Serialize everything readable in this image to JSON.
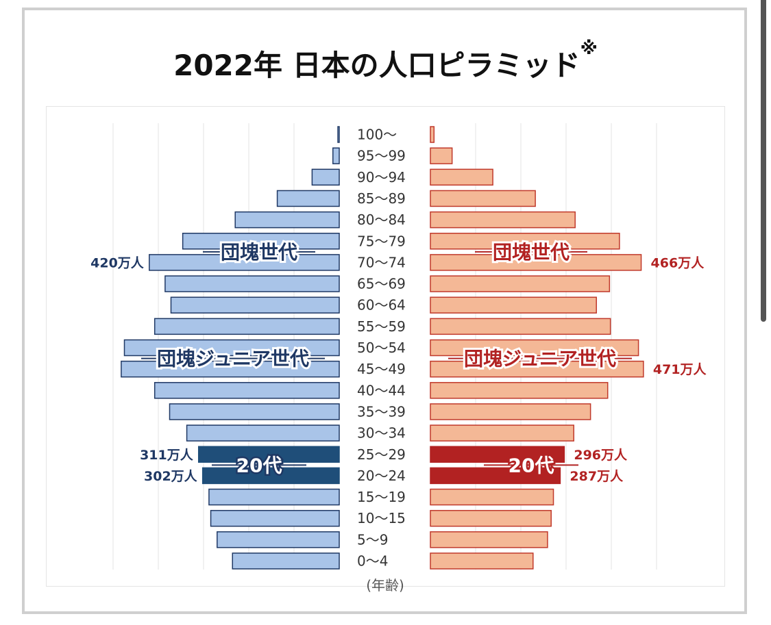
{
  "page": {
    "title": "2022年 日本の人口ピラミッド",
    "title_note_mark": "※"
  },
  "chart_data": {
    "type": "bar",
    "orientation": "horizontal-pyramid",
    "title": "2022年 日本の人口ピラミッド※",
    "xlabel": "",
    "ylabel": "(年齢)",
    "unit": "万人",
    "categories": [
      "0〜4",
      "5〜9",
      "10〜15",
      "15〜19",
      "20〜24",
      "25〜29",
      "30〜34",
      "35〜39",
      "40〜44",
      "45〜49",
      "50〜54",
      "55〜59",
      "60〜64",
      "65〜69",
      "70〜74",
      "75〜79",
      "80〜84",
      "85〜89",
      "90〜94",
      "95〜99",
      "100〜"
    ],
    "xlim": [
      0,
      500
    ],
    "grid": true,
    "series": [
      {
        "side": "left",
        "color": "#a9c4e8",
        "border": "#1f3864",
        "highlight_color": "#1f4e79",
        "values": [
          236,
          270,
          284,
          288,
          302,
          311,
          337,
          375,
          408,
          482,
          475,
          408,
          372,
          385,
          420,
          346,
          230,
          137,
          60,
          14,
          3
        ]
      },
      {
        "side": "right",
        "color": "#f4b896",
        "border": "#c0392b",
        "highlight_color": "#b22222",
        "values": [
          227,
          259,
          267,
          272,
          287,
          296,
          317,
          354,
          392,
          471,
          460,
          398,
          367,
          396,
          466,
          418,
          320,
          232,
          138,
          48,
          8
        ]
      }
    ],
    "highlighted_categories": [
      "20〜24",
      "25〜29"
    ],
    "annotations": [
      {
        "text": "団塊世代",
        "rows": [
          "70〜74",
          "75〜79"
        ]
      },
      {
        "text": "団塊ジュニア世代",
        "rows": [
          "45〜49",
          "50〜54"
        ]
      },
      {
        "text": "20代",
        "rows": [
          "20〜24",
          "25〜29"
        ]
      }
    ],
    "value_labels": [
      {
        "side": "left",
        "category": "70〜74",
        "text": "420万人"
      },
      {
        "side": "left",
        "category": "25〜29",
        "text": "311万人"
      },
      {
        "side": "left",
        "category": "20〜24",
        "text": "302万人"
      },
      {
        "side": "right",
        "category": "70〜74",
        "text": "466万人"
      },
      {
        "side": "right",
        "category": "45〜49",
        "text": "471万人"
      },
      {
        "side": "right",
        "category": "25〜29",
        "text": "296万人"
      },
      {
        "side": "right",
        "category": "20〜24",
        "text": "287万人"
      }
    ]
  }
}
